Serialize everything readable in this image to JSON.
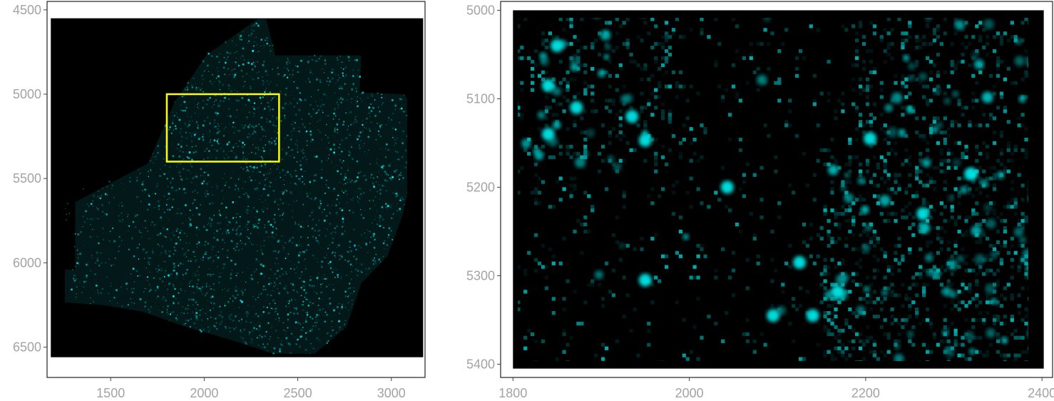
{
  "chart_data": [
    {
      "type": "heatmap",
      "panel": "overview",
      "title": "",
      "xlabel": "",
      "ylabel": "",
      "xlim": [
        1160,
        3180
      ],
      "ylim": [
        4450,
        6680
      ],
      "y_reversed": true,
      "x_ticks": [
        "1500",
        "2000",
        "2500",
        "3000"
      ],
      "y_ticks": [
        "4500",
        "5000",
        "5500",
        "6000",
        "6500"
      ],
      "image_extent": {
        "x": [
          1180,
          3170
        ],
        "y": [
          4550,
          6560
        ]
      },
      "tissue_outline": [
        [
          1180,
          6040
        ],
        [
          1310,
          6040
        ],
        [
          1310,
          5640
        ],
        [
          1700,
          5410
        ],
        [
          1840,
          5050
        ],
        [
          2010,
          4770
        ],
        [
          2290,
          4550
        ],
        [
          2330,
          4550
        ],
        [
          2380,
          4770
        ],
        [
          2840,
          4770
        ],
        [
          2830,
          4990
        ],
        [
          3070,
          5000
        ],
        [
          3170,
          5180
        ],
        [
          3060,
          5720
        ],
        [
          2980,
          5960
        ],
        [
          2840,
          6120
        ],
        [
          2760,
          6380
        ],
        [
          2590,
          6540
        ],
        [
          2370,
          6540
        ],
        [
          2150,
          6460
        ],
        [
          1900,
          6380
        ],
        [
          1670,
          6290
        ],
        [
          1450,
          6250
        ],
        [
          1180,
          6230
        ]
      ],
      "highlight_rect": {
        "x": [
          1800,
          2400
        ],
        "y": [
          5000,
          5400
        ],
        "color": "#ffff00"
      },
      "colors": {
        "background": "#000000",
        "signal": "#00e5e5"
      },
      "grid": false
    },
    {
      "type": "heatmap",
      "panel": "zoom",
      "title": "",
      "xlabel": "",
      "ylabel": "",
      "xlim": [
        1786,
        2412
      ],
      "ylim": [
        4990,
        5415
      ],
      "y_reversed": true,
      "x_ticks": [
        "1800",
        "2000",
        "2200",
        "2400"
      ],
      "y_ticks": [
        "5000",
        "5100",
        "5200",
        "5300",
        "5400"
      ],
      "image_extent": {
        "x": [
          1800,
          2402
        ],
        "y": [
          5000,
          5405
        ]
      },
      "bright_cells": [
        [
          1850,
          5040
        ],
        [
          1935,
          5120
        ],
        [
          1950,
          5147
        ],
        [
          2043,
          5200
        ],
        [
          1950,
          5305
        ],
        [
          1872,
          5110
        ],
        [
          1840,
          5085
        ],
        [
          1840,
          5140
        ],
        [
          2205,
          5145
        ],
        [
          2320,
          5185
        ],
        [
          2265,
          5230
        ],
        [
          2125,
          5285
        ],
        [
          2140,
          5345
        ],
        [
          2095,
          5345
        ],
        [
          2168,
          5318
        ]
      ],
      "colors": {
        "background": "#000000",
        "signal": "#00e5e5"
      },
      "grid": false
    }
  ]
}
